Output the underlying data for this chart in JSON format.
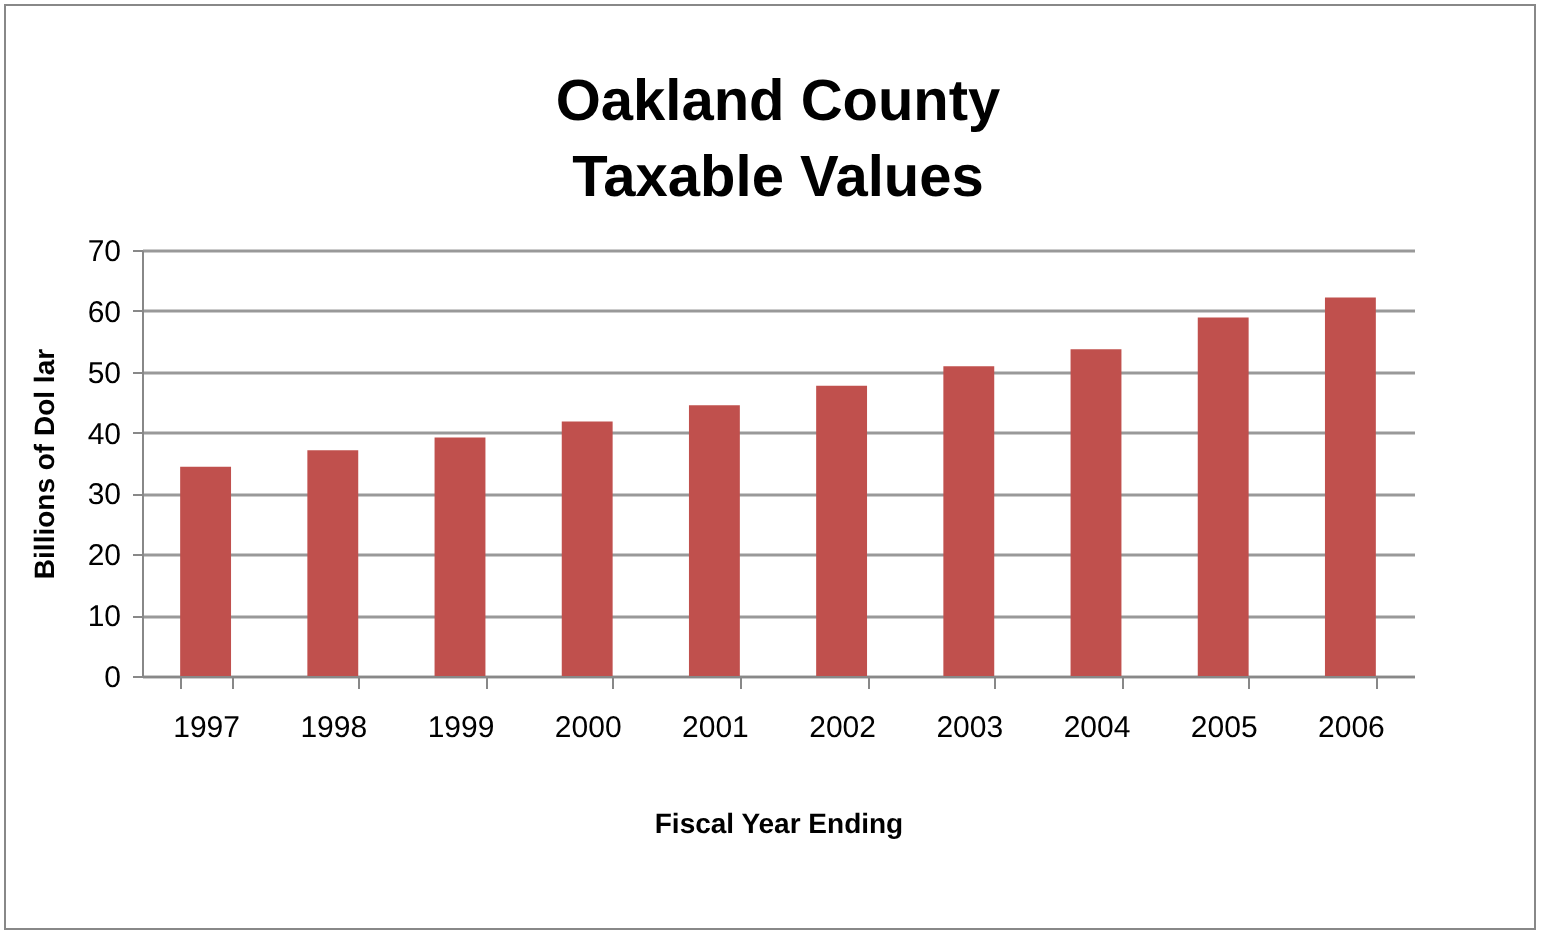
{
  "chart_data": {
    "type": "bar",
    "title": [
      "Oakland County",
      "Taxable Values"
    ],
    "xlabel": "Fiscal Year Ending",
    "ylabel": "Billions  of  Dol lar",
    "categories": [
      "1997",
      "1998",
      "1999",
      "2000",
      "2001",
      "2002",
      "2003",
      "2004",
      "2005",
      "2006"
    ],
    "values": [
      34.4,
      37.1,
      39.2,
      41.8,
      44.5,
      47.7,
      50.9,
      53.7,
      58.9,
      62.2
    ],
    "color": "#c0504d",
    "ylim": [
      0,
      70
    ],
    "yticks": [
      0,
      10,
      20,
      30,
      40,
      50,
      60,
      70
    ],
    "grid": "y"
  }
}
